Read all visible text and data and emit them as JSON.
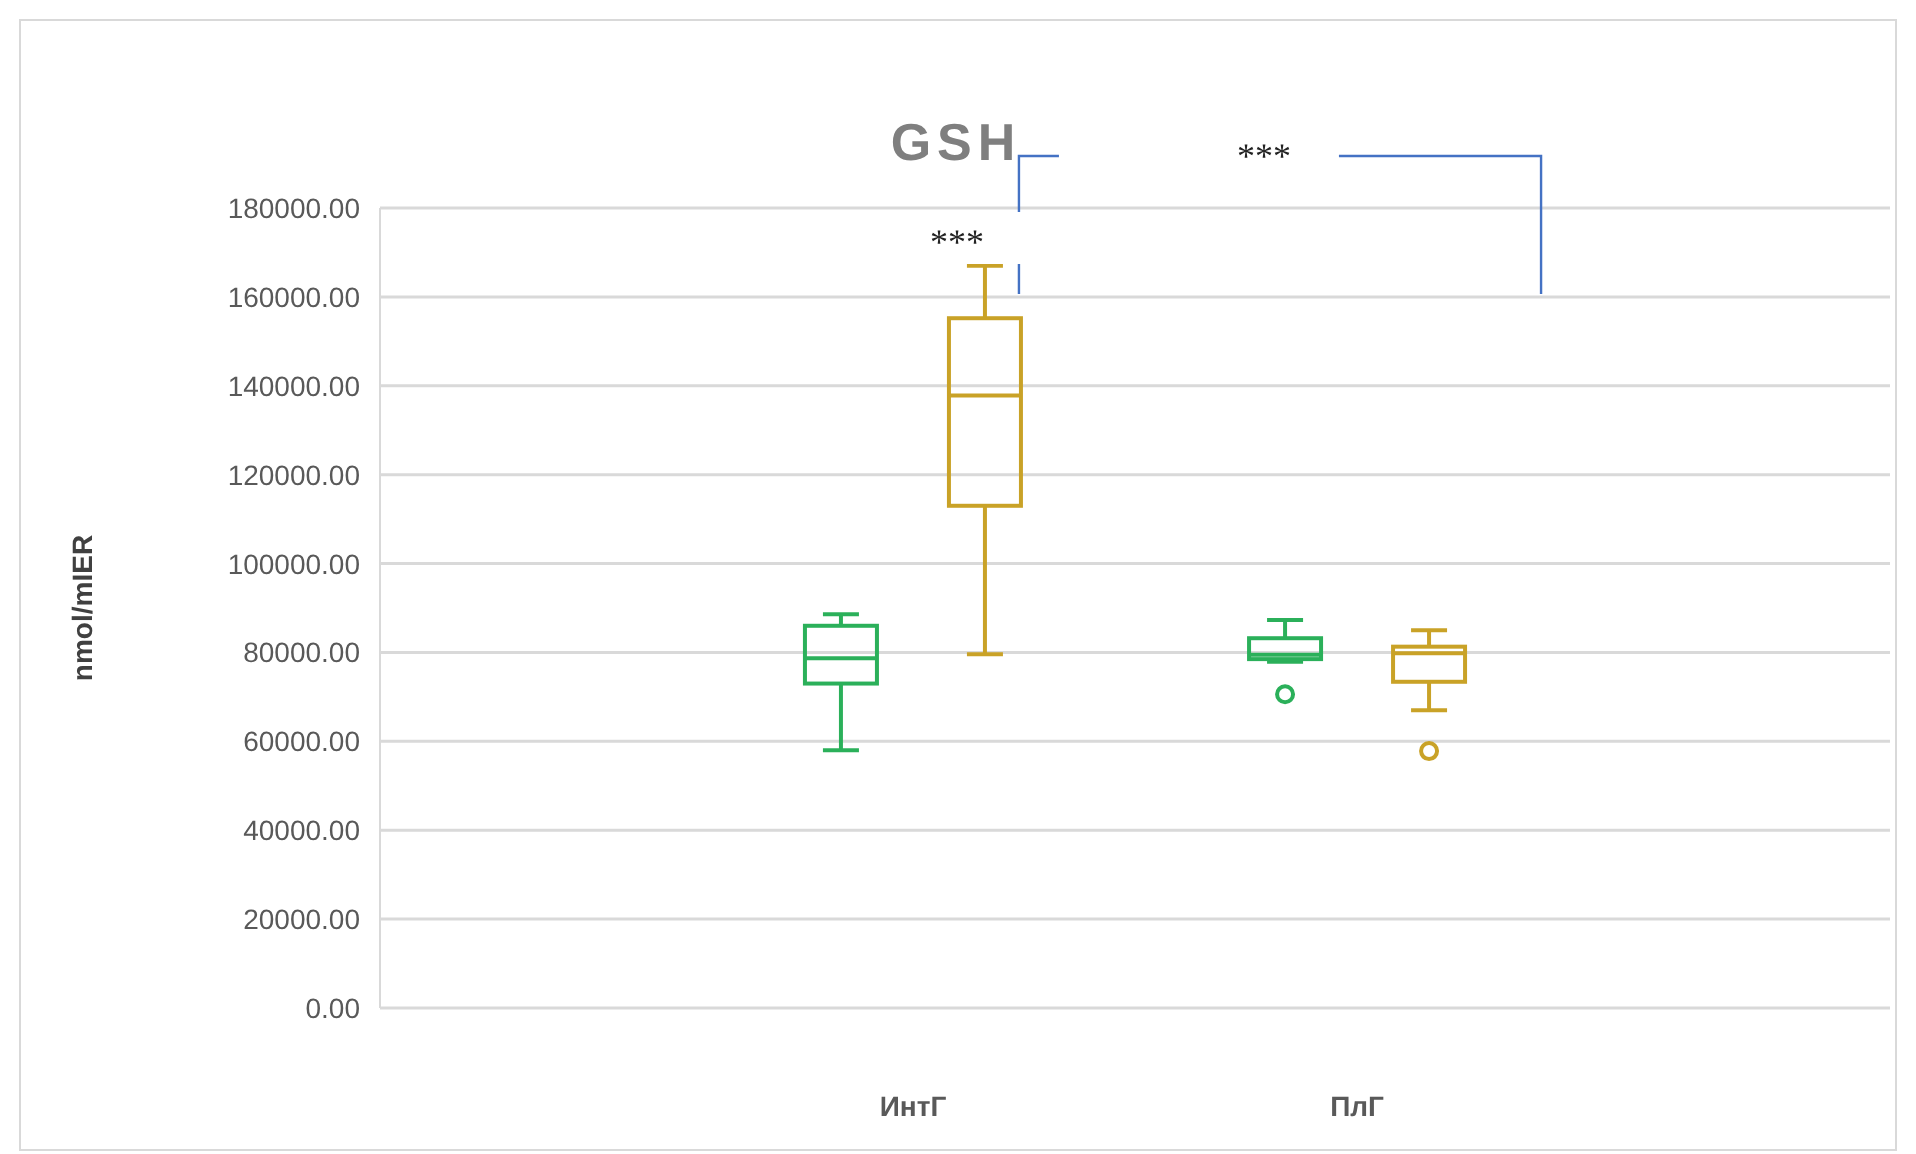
{
  "chart_data": {
    "type": "box",
    "title": "GSH",
    "ylabel": "nmol/mIER",
    "categories": [
      "ИнтГ",
      "ПлГ"
    ],
    "series": [
      {
        "color": "#2bb05a",
        "boxes": [
          {
            "low": 58000,
            "q1": 73000,
            "median": 78700,
            "q3": 86000,
            "high": 88600
          },
          {
            "low": 77900,
            "q1": 78500,
            "median": 79500,
            "q3": 83200,
            "high": 87300,
            "outliers": [
              70600
            ]
          }
        ]
      },
      {
        "color": "#c9a227",
        "boxes": [
          {
            "low": 79600,
            "q1": 113000,
            "median": 137800,
            "q3": 155200,
            "high": 167000
          },
          {
            "low": 67000,
            "q1": 73400,
            "median": 79800,
            "q3": 81300,
            "high": 85000,
            "outliers": [
              57800
            ]
          }
        ]
      }
    ],
    "ylim": [
      0,
      180000
    ],
    "yticks": [
      {
        "value": 0,
        "label": "0.00"
      },
      {
        "value": 20000,
        "label": "20000.00"
      },
      {
        "value": 40000,
        "label": "40000.00"
      },
      {
        "value": 60000,
        "label": "60000.00"
      },
      {
        "value": 80000,
        "label": "80000.00"
      },
      {
        "value": 100000,
        "label": "100000.00"
      },
      {
        "value": 120000,
        "label": "120000.00"
      },
      {
        "value": 140000,
        "label": "140000.00"
      },
      {
        "value": 160000,
        "label": "160000.00"
      },
      {
        "value": 180000,
        "label": "180000.00"
      }
    ],
    "grid": "y",
    "annotations": [
      "***",
      "***"
    ]
  }
}
